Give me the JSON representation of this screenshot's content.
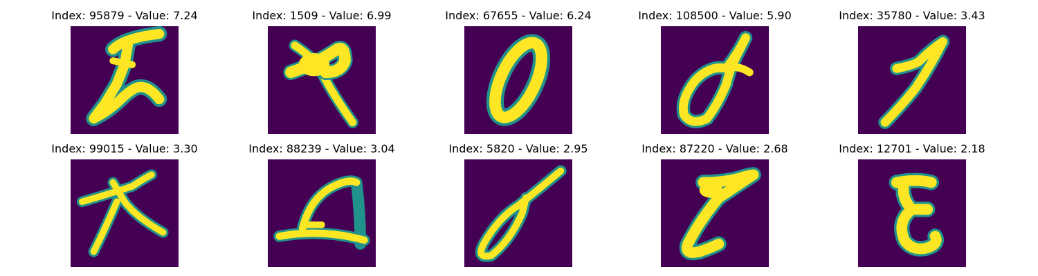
{
  "colors": {
    "background": "#440154",
    "edge": "#21918c",
    "mid": "#5ec962",
    "stroke": "#fde725"
  },
  "panels": [
    {
      "title": "Index: 95879 - Value: 7.24",
      "digit-icon": "handwritten-digit-2-icon"
    },
    {
      "title": "Index: 1509 - Value: 6.99",
      "digit-icon": "handwritten-cross-icon"
    },
    {
      "title": "Index: 67655 - Value: 6.24",
      "digit-icon": "handwritten-digit-0-icon"
    },
    {
      "title": "Index: 108500 - Value: 5.90",
      "digit-icon": "handwritten-digit-0-icon"
    },
    {
      "title": "Index: 35780 - Value: 3.43",
      "digit-icon": "handwritten-digit-7-icon"
    },
    {
      "title": "Index: 99015 - Value: 3.30",
      "digit-icon": "handwritten-character-icon"
    },
    {
      "title": "Index: 88239 - Value: 3.04",
      "digit-icon": "handwritten-digit-4-icon"
    },
    {
      "title": "Index: 5820 - Value: 2.95",
      "digit-icon": "handwritten-digit-0-icon"
    },
    {
      "title": "Index: 87220 - Value: 2.68",
      "digit-icon": "handwritten-digit-7-icon"
    },
    {
      "title": "Index: 12701 - Value: 2.18",
      "digit-icon": "handwritten-digit-3-icon"
    }
  ]
}
